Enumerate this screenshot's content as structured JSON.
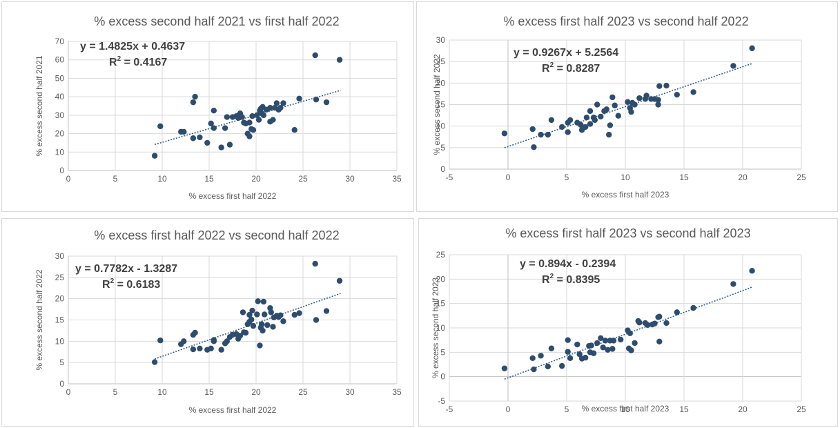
{
  "chart_data": [
    {
      "type": "scatter",
      "title": "% excess second half 2021 vs first half 2022",
      "xlabel": "% excess first half 2022",
      "ylabel": "% excess second half 2021",
      "xlim": [
        0,
        35
      ],
      "xticks": [
        0,
        5,
        10,
        15,
        20,
        25,
        30,
        35
      ],
      "ylim": [
        0,
        70
      ],
      "yticks": [
        0,
        10,
        20,
        30,
        40,
        50,
        60,
        70
      ],
      "equation": "y = 1.4825x + 0.4637",
      "r2_label": "R",
      "r2_sup": "2",
      "r2_value": " = 0.4167",
      "trend": {
        "slope": 1.4825,
        "intercept": 0.4637,
        "x_range": [
          9.2,
          29
        ]
      },
      "points": [
        [
          9.2,
          8
        ],
        [
          9.8,
          24
        ],
        [
          12,
          21
        ],
        [
          12.3,
          21
        ],
        [
          13.3,
          37
        ],
        [
          13.5,
          40
        ],
        [
          13.3,
          17.5
        ],
        [
          14,
          18
        ],
        [
          14.8,
          15
        ],
        [
          15.2,
          25.5
        ],
        [
          15.5,
          32.5
        ],
        [
          15.5,
          23
        ],
        [
          16.3,
          12.5
        ],
        [
          16.7,
          23
        ],
        [
          16.9,
          29
        ],
        [
          17.2,
          14
        ],
        [
          17.5,
          29
        ],
        [
          17.9,
          29.5
        ],
        [
          18.1,
          28.5
        ],
        [
          18.3,
          31
        ],
        [
          18.5,
          29
        ],
        [
          18.7,
          26
        ],
        [
          18.9,
          25.5
        ],
        [
          19.1,
          20
        ],
        [
          19.3,
          18.5
        ],
        [
          19.3,
          26
        ],
        [
          19.5,
          22.5
        ],
        [
          19.7,
          22
        ],
        [
          19.6,
          29.5
        ],
        [
          20.1,
          30
        ],
        [
          20.3,
          27.5
        ],
        [
          20.4,
          32.5
        ],
        [
          20.5,
          33.5
        ],
        [
          20.6,
          31
        ],
        [
          20.7,
          34.5
        ],
        [
          20.8,
          30
        ],
        [
          21.1,
          33
        ],
        [
          21.5,
          34
        ],
        [
          21.5,
          26.5
        ],
        [
          21.8,
          27.5
        ],
        [
          22,
          34
        ],
        [
          22.2,
          36.5
        ],
        [
          22.4,
          33
        ],
        [
          22.6,
          34
        ],
        [
          22.9,
          36.5
        ],
        [
          24.1,
          22
        ],
        [
          24.6,
          39
        ],
        [
          26.3,
          62.5
        ],
        [
          26.4,
          38.5
        ],
        [
          27.5,
          37
        ],
        [
          28.9,
          60
        ]
      ]
    },
    {
      "type": "scatter",
      "title": "% excess first half 2023 vs second half 2022",
      "xlabel": "% excess first half 2023",
      "ylabel": "% excess second half 2022",
      "xlim": [
        -5,
        25
      ],
      "xticks": [
        -5,
        0,
        5,
        10,
        15,
        20,
        25
      ],
      "ylim": [
        0,
        30
      ],
      "yticks": [
        0,
        5,
        10,
        15,
        20,
        25,
        30
      ],
      "equation": "y = 0.9267x + 5.2564",
      "r2_label": "R",
      "r2_sup": "2",
      "r2_value": " = 0.8287",
      "trend": {
        "slope": 0.9267,
        "intercept": 5.2564,
        "x_range": [
          -0.3,
          20.8
        ]
      },
      "points": [
        [
          -0.3,
          8.3
        ],
        [
          2.1,
          9.3
        ],
        [
          2.2,
          5.1
        ],
        [
          2.8,
          8
        ],
        [
          3.4,
          8
        ],
        [
          3.7,
          11.4
        ],
        [
          4.6,
          9.8
        ],
        [
          5.1,
          10.8
        ],
        [
          5.3,
          11.4
        ],
        [
          5.1,
          8.6
        ],
        [
          5.9,
          10.8
        ],
        [
          6.2,
          10.3
        ],
        [
          6.3,
          9.1
        ],
        [
          6.6,
          9.8
        ],
        [
          6.7,
          12
        ],
        [
          7,
          13.5
        ],
        [
          7,
          10.5
        ],
        [
          7.3,
          12
        ],
        [
          7.4,
          11.4
        ],
        [
          7.6,
          15
        ],
        [
          7.9,
          12.2
        ],
        [
          8.2,
          13.5
        ],
        [
          8.4,
          13.9
        ],
        [
          8.6,
          8
        ],
        [
          8.7,
          10.2
        ],
        [
          8.9,
          16.7
        ],
        [
          9.1,
          14.8
        ],
        [
          9.4,
          12.4
        ],
        [
          10.2,
          15.6
        ],
        [
          10.4,
          14.2
        ],
        [
          10.5,
          13.3
        ],
        [
          10.6,
          15.4
        ],
        [
          10.8,
          15
        ],
        [
          11.2,
          16.5
        ],
        [
          11.7,
          16.3
        ],
        [
          11.8,
          17.1
        ],
        [
          12.2,
          16.3
        ],
        [
          12.5,
          16.3
        ],
        [
          12.8,
          15
        ],
        [
          12.8,
          16.1
        ],
        [
          12.9,
          19.3
        ],
        [
          13.5,
          19.4
        ],
        [
          14.4,
          17.3
        ],
        [
          15.8,
          17.9
        ],
        [
          19.2,
          24
        ],
        [
          20.8,
          28.1
        ]
      ]
    },
    {
      "type": "scatter",
      "title": "% excess first half 2022 vs second half 2022",
      "xlabel": "% excess first half 2022",
      "ylabel": "% excess second half 2022",
      "xlim": [
        0,
        35
      ],
      "xticks": [
        0,
        5,
        10,
        15,
        20,
        25,
        30,
        35
      ],
      "ylim": [
        0,
        30
      ],
      "yticks": [
        0,
        5,
        10,
        15,
        20,
        25,
        30
      ],
      "equation": "y = 0.7782x - 1.3287",
      "r2_label": "R",
      "r2_sup": "2",
      "r2_value": " = 0.6183",
      "trend": {
        "slope": 0.7782,
        "intercept": -1.3287,
        "x_range": [
          9.2,
          29
        ]
      },
      "points": [
        [
          9.2,
          5.1
        ],
        [
          9.8,
          10.2
        ],
        [
          12,
          9.3
        ],
        [
          12.3,
          10
        ],
        [
          13.3,
          8.1
        ],
        [
          13.3,
          11.5
        ],
        [
          13.5,
          12
        ],
        [
          14,
          8.3
        ],
        [
          14.8,
          8
        ],
        [
          15.2,
          8.3
        ],
        [
          15.5,
          10.3
        ],
        [
          15.5,
          10
        ],
        [
          16.3,
          8
        ],
        [
          16.7,
          9.5
        ],
        [
          16.9,
          10
        ],
        [
          17.2,
          11
        ],
        [
          17.5,
          11.5
        ],
        [
          17.9,
          11.7
        ],
        [
          18.1,
          10.6
        ],
        [
          18.3,
          11.3
        ],
        [
          18.6,
          16.8
        ],
        [
          18.7,
          12.1
        ],
        [
          18.9,
          12
        ],
        [
          19.1,
          14
        ],
        [
          19.3,
          14.6
        ],
        [
          19.3,
          16.2
        ],
        [
          19.5,
          15.1
        ],
        [
          19.6,
          17.2
        ],
        [
          19.7,
          13.6
        ],
        [
          20.1,
          16.3
        ],
        [
          20.2,
          19.4
        ],
        [
          20.4,
          9
        ],
        [
          20.5,
          13.2
        ],
        [
          20.6,
          14
        ],
        [
          20.7,
          12.5
        ],
        [
          20.8,
          19.3
        ],
        [
          20.9,
          16.3
        ],
        [
          21.2,
          13.8
        ],
        [
          21.5,
          17.8
        ],
        [
          21.6,
          16.8
        ],
        [
          21.8,
          13.4
        ],
        [
          21.9,
          15.6
        ],
        [
          22.2,
          16
        ],
        [
          22.4,
          15.7
        ],
        [
          22.6,
          16.1
        ],
        [
          22.9,
          14.7
        ],
        [
          24.1,
          16.2
        ],
        [
          24.6,
          16.6
        ],
        [
          26.3,
          28.2
        ],
        [
          26.4,
          15
        ],
        [
          27.5,
          17.1
        ],
        [
          28.9,
          24.2
        ]
      ]
    },
    {
      "type": "scatter",
      "title": "% excess first half 2023 vs second half 2023",
      "xlabel": "% excess first half 2023",
      "ylabel": "% excess second half 2023",
      "xlim": [
        -5,
        25
      ],
      "xticks": [
        -5,
        0,
        5,
        10,
        15,
        20,
        25
      ],
      "ylim": [
        -5,
        25
      ],
      "yticks": [
        -5,
        0,
        5,
        10,
        15,
        20,
        25
      ],
      "equation": "y = 0.894x - 0.2394",
      "r2_label": "R",
      "r2_sup": "2",
      "r2_value": " = 0.8395",
      "trend": {
        "slope": 0.894,
        "intercept": -0.2394,
        "x_range": [
          -0.3,
          20.8
        ]
      },
      "points": [
        [
          -0.3,
          1.7
        ],
        [
          2.1,
          3.8
        ],
        [
          2.2,
          1.5
        ],
        [
          2.8,
          4.3
        ],
        [
          3.4,
          2.1
        ],
        [
          3.7,
          5.8
        ],
        [
          4.6,
          2.2
        ],
        [
          5.1,
          7.5
        ],
        [
          5.1,
          5.1
        ],
        [
          5.3,
          3.8
        ],
        [
          5.9,
          6.6
        ],
        [
          6.1,
          4.6
        ],
        [
          6.3,
          3.7
        ],
        [
          6.6,
          3.9
        ],
        [
          6.9,
          6.3
        ],
        [
          7,
          5
        ],
        [
          7.1,
          6.4
        ],
        [
          7.3,
          4.8
        ],
        [
          7.6,
          6.9
        ],
        [
          7.9,
          7.9
        ],
        [
          8.1,
          6
        ],
        [
          8.3,
          7.4
        ],
        [
          8.5,
          5.5
        ],
        [
          8.7,
          7.4
        ],
        [
          8.9,
          5.7
        ],
        [
          9,
          7.4
        ],
        [
          9.6,
          7.6
        ],
        [
          10.2,
          9.5
        ],
        [
          10.3,
          5.8
        ],
        [
          10.4,
          8.9
        ],
        [
          10.5,
          5.4
        ],
        [
          10.8,
          6.9
        ],
        [
          11.1,
          11.4
        ],
        [
          11.2,
          11.1
        ],
        [
          11.7,
          11
        ],
        [
          11.9,
          10.6
        ],
        [
          12.3,
          10.7
        ],
        [
          12.5,
          10.9
        ],
        [
          12.8,
          12.2
        ],
        [
          12.9,
          7.2
        ],
        [
          12.9,
          12.3
        ],
        [
          13.5,
          11
        ],
        [
          14.4,
          13.2
        ],
        [
          15.8,
          14.1
        ],
        [
          19.2,
          19
        ],
        [
          20.8,
          21.7
        ]
      ]
    }
  ]
}
